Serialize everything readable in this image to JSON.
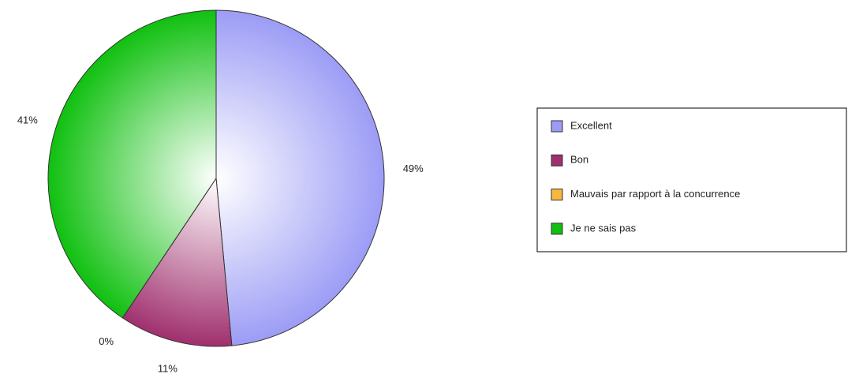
{
  "chart_data": {
    "type": "pie",
    "categories": [
      "Excellent",
      "Bon",
      "Mauvais par rapport à la concurrence",
      "Je ne sais pas"
    ],
    "values": [
      49,
      11,
      0,
      41
    ],
    "value_labels": [
      "49%",
      "11%",
      "0%",
      "41%"
    ],
    "colors": [
      "#9c9cf6",
      "#a0306e",
      "#f8b840",
      "#10c010"
    ],
    "legend": "right"
  }
}
